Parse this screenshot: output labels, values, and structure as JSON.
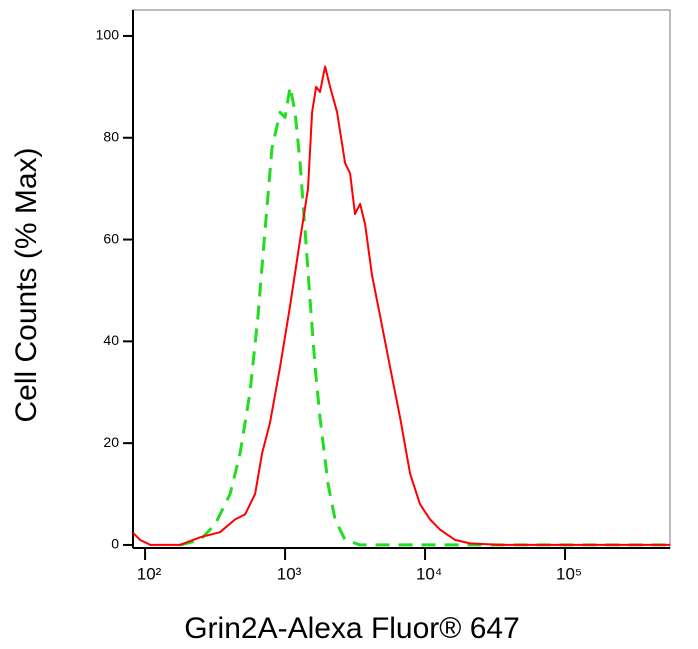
{
  "chart_data": {
    "type": "line",
    "x_label": "Grin2A-Alexa Fluor® 647",
    "y_label": "Cell Counts (% Max)",
    "xscale": "log",
    "xlim": [
      82,
      562000
    ],
    "ylim": [
      -0.6,
      105.1
    ],
    "xticks": [
      {
        "value": 100,
        "label": "10²"
      },
      {
        "value": 1000,
        "label": "10³"
      },
      {
        "value": 10000,
        "label": "10⁴"
      },
      {
        "value": 100000,
        "label": "10⁵"
      }
    ],
    "yticks": [
      0,
      20,
      40,
      60,
      80,
      100
    ],
    "series": [
      {
        "color": "#ff0000",
        "dash": false,
        "x": [
          82,
          92,
          109,
          178,
          247,
          343,
          439,
          518,
          611,
          685,
          781,
          921,
          1086,
          1280,
          1459,
          1560,
          1665,
          1778,
          1931,
          2096,
          2352,
          2683,
          2914,
          3162,
          3434,
          3728,
          4182,
          4771,
          5623,
          6629,
          7815,
          9210,
          10860,
          12800,
          16380,
          20960,
          34340,
          562000
        ],
        "values": [
          2.4,
          1,
          0,
          0,
          1.5,
          2.5,
          5,
          6,
          10,
          18,
          24,
          35,
          47,
          60,
          70,
          85,
          90,
          89,
          94,
          90,
          85,
          75,
          73,
          65,
          67,
          63,
          53,
          45,
          35,
          25,
          14,
          8,
          5,
          3,
          1,
          0.3,
          0,
          0
        ]
      },
      {
        "color": "#22dd22",
        "dash": true,
        "x": [
          178,
          247,
          316,
          405,
          477,
          562,
          641,
          720,
          807,
          921,
          1000,
          1086,
          1179,
          1280,
          1389,
          1509,
          1638,
          1778,
          2028,
          2276,
          2683,
          3434,
          9210,
          562000
        ],
        "values": [
          0,
          1,
          4,
          10,
          18,
          30,
          45,
          62,
          78,
          85,
          84,
          90,
          85,
          75,
          62,
          48,
          35,
          25,
          12,
          5,
          1,
          0,
          0,
          0
        ]
      }
    ]
  }
}
